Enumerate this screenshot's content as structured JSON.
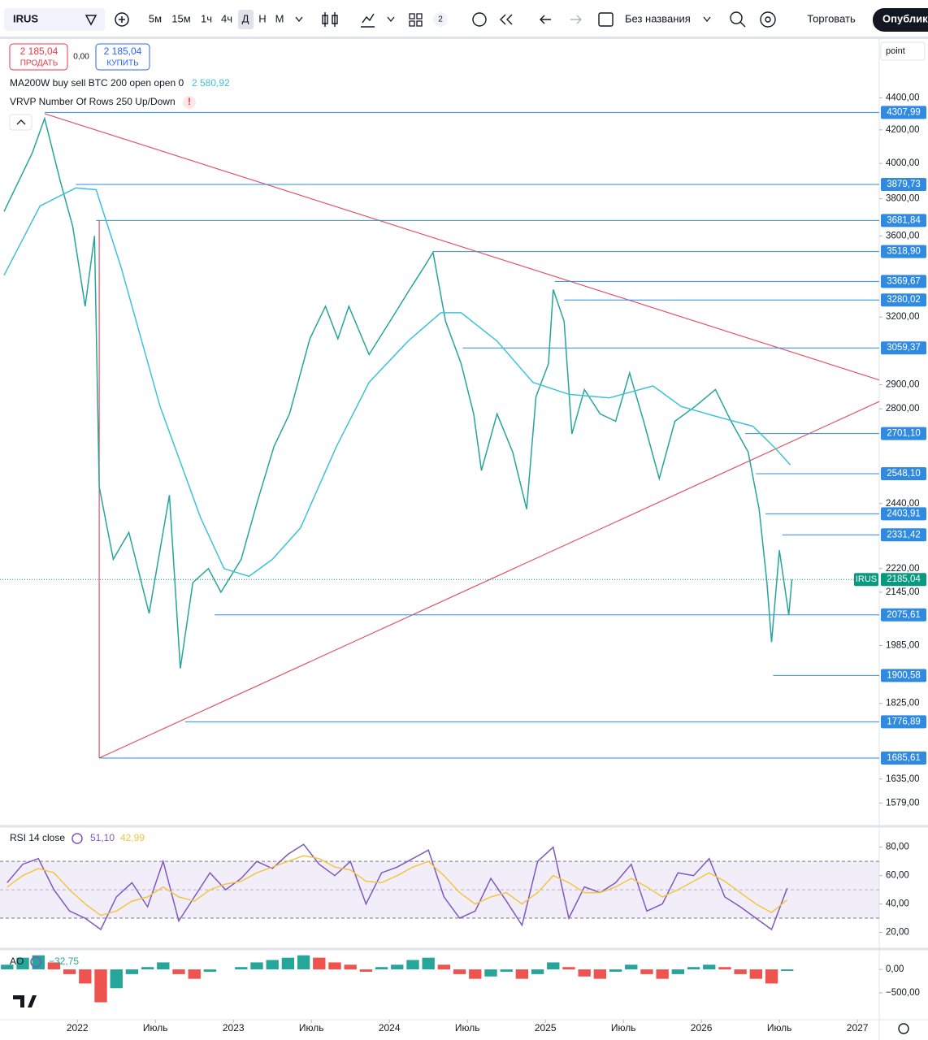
{
  "toolbar": {
    "symbol": "IRUS",
    "intervals": [
      "5м",
      "15м",
      "1ч",
      "4ч",
      "Д",
      "Н",
      "М"
    ],
    "layout_count": "2",
    "layout_name": "Без названия",
    "trade": "Торговать",
    "publish": "Опубликовать"
  },
  "trade_panel": {
    "sell_price": "2 185,04",
    "sell": "ПРОДАТЬ",
    "spread": "0,00",
    "buy_price": "2 185,04",
    "buy": "КУПИТЬ"
  },
  "overlay": "VRVP Number Of Rows 250 Up/Down",
  "scale_mode": "point",
  "chart_data": [
    {
      "type": "line",
      "log_scale": true,
      "xlim": [
        2021.53,
        2027.14
      ],
      "ylim": [
        1530,
        4793
      ],
      "xticks": [
        2022,
        {
          "value": 2022.5,
          "label": "Июль"
        },
        2023,
        {
          "value": 2023.5,
          "label": "Июль"
        },
        2024,
        {
          "value": 2024.5,
          "label": "Июль"
        },
        2025,
        {
          "value": 2025.5,
          "label": "Июль"
        },
        2026,
        {
          "value": 2026.5,
          "label": "Июль"
        },
        2027
      ],
      "yticks": [
        {
          "value": 4400,
          "label": "4400,00"
        },
        {
          "value": 4200,
          "label": "4200,00"
        },
        {
          "value": 4000,
          "label": "4000,00"
        },
        {
          "value": 3800,
          "label": "3800,00"
        },
        {
          "value": 3600,
          "label": "3600,00"
        },
        {
          "value": 3200,
          "label": "3200,00"
        },
        {
          "value": 2900,
          "label": "2900,00"
        },
        {
          "value": 2800,
          "label": "2800,00"
        },
        {
          "value": 2440,
          "label": "2440,00"
        },
        {
          "value": 2220,
          "label": "2220,00"
        },
        {
          "value": 2145,
          "label": "2145,00"
        },
        {
          "value": 1985,
          "label": "1985,00"
        },
        {
          "value": 1825,
          "label": "1825,00"
        },
        {
          "value": 1635,
          "label": "1635,00"
        },
        {
          "value": 1579,
          "label": "1579,00"
        }
      ],
      "series": [
        {
          "name": "IRUS",
          "color": "#26a69a",
          "tag_color": "#089981",
          "last_label": "2185,04",
          "x": [
            2021.53,
            2021.71,
            2021.79,
            2021.89,
            2021.97,
            2022.05,
            2022.11,
            2022.14,
            2022.23,
            2022.33,
            2022.46,
            2022.59,
            2022.66,
            2022.74,
            2022.84,
            2022.92,
            2023.05,
            2023.15,
            2023.26,
            2023.36,
            2023.49,
            2023.59,
            2023.67,
            2023.74,
            2023.87,
            2024.03,
            2024.13,
            2024.23,
            2024.28,
            2024.36,
            2024.46,
            2024.54,
            2024.59,
            2024.69,
            2024.79,
            2024.88,
            2024.94,
            2025.02,
            2025.05,
            2025.12,
            2025.17,
            2025.25,
            2025.35,
            2025.45,
            2025.54,
            2025.63,
            2025.73,
            2025.83,
            2025.96,
            2026.09,
            2026.19,
            2026.3,
            2026.37,
            2026.42,
            2026.45,
            2026.5,
            2026.56,
            2026.58
          ],
          "values": [
            3730,
            4060,
            4270,
            3900,
            3650,
            3250,
            3600,
            2500,
            2250,
            2340,
            2080,
            2470,
            1920,
            2175,
            2220,
            2145,
            2250,
            2440,
            2650,
            2780,
            3100,
            3250,
            3100,
            3250,
            3030,
            3210,
            3330,
            3450,
            3515,
            3180,
            2990,
            2780,
            2560,
            2780,
            2630,
            2420,
            2850,
            2990,
            3330,
            3180,
            2700,
            2880,
            2780,
            2750,
            2950,
            2750,
            2530,
            2750,
            2810,
            2880,
            2750,
            2630,
            2420,
            2175,
            1995,
            2280,
            2075,
            2185.04
          ]
        },
        {
          "name": "MA200W buy sell BTC 200 open open 0",
          "color": "#3ec3d6",
          "last_label": "2 580,92",
          "x": [
            2021.53,
            2021.76,
            2021.99,
            2022.12,
            2022.28,
            2022.53,
            2022.79,
            2022.94,
            2023.1,
            2023.25,
            2023.43,
            2023.66,
            2023.87,
            2024.12,
            2024.33,
            2024.46,
            2024.69,
            2024.92,
            2025.15,
            2025.41,
            2025.69,
            2025.87,
            2026.12,
            2026.33,
            2026.48,
            2026.57
          ],
          "values": [
            3400,
            3760,
            3860,
            3850,
            3440,
            2810,
            2390,
            2220,
            2195,
            2250,
            2355,
            2650,
            2910,
            3090,
            3220,
            3220,
            3090,
            2910,
            2860,
            2845,
            2895,
            2810,
            2765,
            2730,
            2640,
            2580.92
          ]
        }
      ],
      "levels": [
        {
          "value": 4307.99,
          "label": "4307,99",
          "from": 2021.79
        },
        {
          "value": 3879.73,
          "label": "3879,73",
          "from": 2021.99
        },
        {
          "value": 3681.84,
          "label": "3681,84",
          "from": 2022.12
        },
        {
          "value": 3518.9,
          "label": "3518,90",
          "from": 2024.28
        },
        {
          "value": 3369.67,
          "label": "3369,67",
          "from": 2025.06
        },
        {
          "value": 3280.02,
          "label": "3280,02",
          "from": 2025.12
        },
        {
          "value": 3059.37,
          "label": "3059,37",
          "from": 2024.47
        },
        {
          "value": 2701.1,
          "label": "2701,10",
          "from": 2026.28
        },
        {
          "value": 2548.1,
          "label": "2548,10",
          "from": 2026.35
        },
        {
          "value": 2403.91,
          "label": "2403,91",
          "from": 2026.41
        },
        {
          "value": 2331.42,
          "label": "2331,42",
          "from": 2026.52
        },
        {
          "value": 2075.61,
          "label": "2075,61",
          "from": 2022.88
        },
        {
          "value": 1900.58,
          "label": "1900,58",
          "from": 2026.46
        },
        {
          "value": 1776.89,
          "label": "1776,89",
          "from": 2022.69
        },
        {
          "value": 1685.61,
          "label": "1685,61",
          "from": 2022.14
        }
      ],
      "level_color": "#2f8ae0",
      "trendlines": [
        {
          "x": [
            2021.79,
            2027.14
          ],
          "y": [
            4300,
            2920
          ]
        },
        {
          "x": [
            2022.14,
            2027.14
          ],
          "y": [
            1685.61,
            2830
          ]
        },
        {
          "x": [
            2022.14,
            2022.14
          ],
          "y": [
            3681.84,
            1685.61
          ]
        }
      ],
      "trend_color": "#e05565"
    },
    {
      "type": "line",
      "title": "RSI 14 close",
      "xlim": [
        2021.53,
        2027.14
      ],
      "ylim": [
        10,
        93
      ],
      "yticks": [
        {
          "value": 80,
          "label": "80,00"
        },
        {
          "value": 60,
          "label": "60,00"
        },
        {
          "value": 40,
          "label": "40,00"
        },
        {
          "value": 20,
          "label": "20,00"
        }
      ],
      "bands": [
        30,
        70
      ],
      "midline": 50,
      "band_color": "#7e57c2",
      "x": [
        2021.55,
        2021.65,
        2021.75,
        2021.85,
        2021.95,
        2022.05,
        2022.15,
        2022.25,
        2022.35,
        2022.45,
        2022.55,
        2022.65,
        2022.75,
        2022.85,
        2022.95,
        2023.05,
        2023.15,
        2023.25,
        2023.35,
        2023.45,
        2023.55,
        2023.65,
        2023.75,
        2023.85,
        2023.95,
        2024.05,
        2024.15,
        2024.25,
        2024.35,
        2024.45,
        2024.55,
        2024.65,
        2024.75,
        2024.85,
        2024.95,
        2025.05,
        2025.15,
        2025.25,
        2025.35,
        2025.45,
        2025.55,
        2025.65,
        2025.75,
        2025.85,
        2025.95,
        2026.05,
        2026.15,
        2026.25,
        2026.35,
        2026.45,
        2026.55
      ],
      "series": [
        {
          "color": "#7e57c2",
          "last_label": "51,10",
          "values": [
            55,
            68,
            72,
            50,
            35,
            30,
            22,
            45,
            55,
            38,
            70,
            28,
            45,
            62,
            50,
            58,
            70,
            65,
            75,
            82,
            68,
            60,
            70,
            40,
            62,
            66,
            72,
            78,
            45,
            30,
            35,
            58,
            42,
            25,
            70,
            80,
            30,
            52,
            48,
            55,
            68,
            35,
            40,
            62,
            60,
            72,
            45,
            38,
            30,
            22,
            51.1
          ]
        },
        {
          "color": "#f4c542",
          "last_label": "42,99",
          "values": [
            52,
            60,
            65,
            62,
            50,
            40,
            32,
            35,
            42,
            45,
            52,
            45,
            42,
            50,
            54,
            56,
            62,
            66,
            70,
            74,
            72,
            66,
            64,
            56,
            55,
            60,
            66,
            70,
            60,
            48,
            40,
            45,
            48,
            40,
            48,
            60,
            55,
            48,
            48,
            52,
            58,
            52,
            45,
            50,
            56,
            62,
            56,
            48,
            40,
            34,
            42.99
          ]
        }
      ]
    },
    {
      "type": "histogram",
      "title": "AO",
      "xlim": [
        2021.53,
        2027.14
      ],
      "ylim": [
        -1070,
        400
      ],
      "yticks": [
        {
          "value": 0,
          "label": "0,00"
        },
        {
          "value": -500,
          "label": "−500,00"
        }
      ],
      "up_color": "#26a69a",
      "down_color": "#ef5350",
      "last_label": "−32,75",
      "x": [
        2021.55,
        2021.65,
        2021.75,
        2021.85,
        2021.95,
        2022.05,
        2022.15,
        2022.25,
        2022.35,
        2022.45,
        2022.55,
        2022.65,
        2022.75,
        2022.85,
        2022.95,
        2023.05,
        2023.15,
        2023.25,
        2023.35,
        2023.45,
        2023.55,
        2023.65,
        2023.75,
        2023.85,
        2023.95,
        2024.05,
        2024.15,
        2024.25,
        2024.35,
        2024.45,
        2024.55,
        2024.65,
        2024.75,
        2024.85,
        2024.95,
        2025.05,
        2025.15,
        2025.25,
        2025.35,
        2025.45,
        2025.55,
        2025.65,
        2025.75,
        2025.85,
        2025.95,
        2026.05,
        2026.15,
        2026.25,
        2026.35,
        2026.45,
        2026.55
      ],
      "values": [
        100,
        250,
        300,
        150,
        -100,
        -300,
        -700,
        -400,
        -100,
        50,
        150,
        -100,
        -200,
        -50,
        0,
        50,
        150,
        200,
        250,
        300,
        250,
        150,
        100,
        -50,
        50,
        100,
        200,
        250,
        100,
        -100,
        -200,
        -150,
        -50,
        -200,
        -100,
        150,
        50,
        -150,
        -200,
        -50,
        100,
        -100,
        -200,
        -100,
        50,
        100,
        50,
        -100,
        -200,
        -300,
        -32.75
      ]
    }
  ]
}
